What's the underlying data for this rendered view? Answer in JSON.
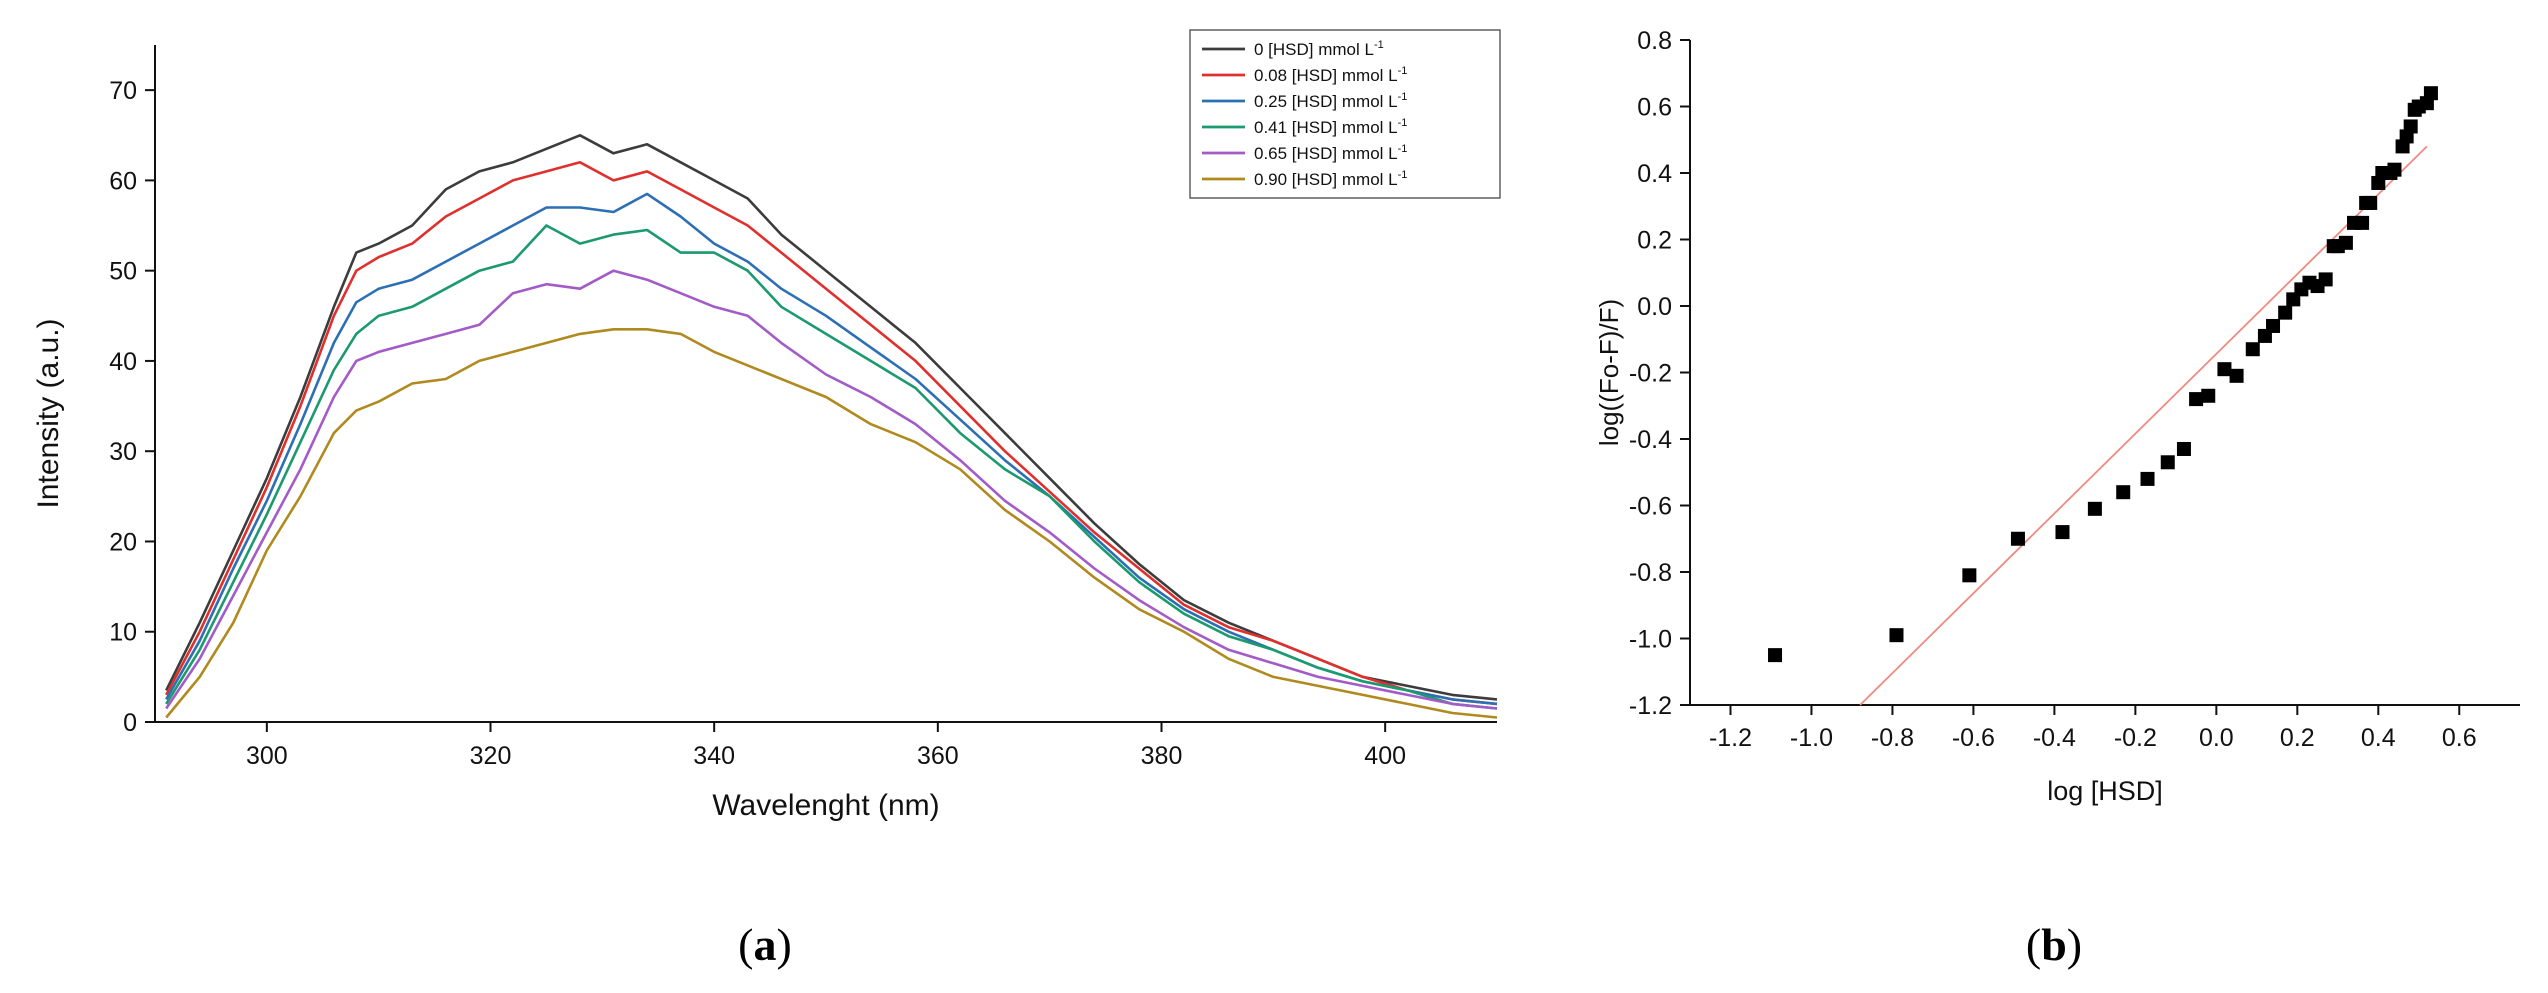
{
  "chart_data": [
    {
      "type": "line",
      "panel": "a",
      "xlabel": "Wavelenght (nm)",
      "ylabel": "Intensity (a.u.)",
      "xlim": [
        290,
        410
      ],
      "ylim": [
        0,
        75
      ],
      "xticks": [
        300,
        320,
        340,
        360,
        380,
        400
      ],
      "yticks": [
        0,
        10,
        20,
        30,
        40,
        50,
        60,
        70
      ],
      "legend_position": "top-right",
      "legend_unit_suffix": "-1",
      "x": [
        291,
        294,
        297,
        300,
        303,
        306,
        308,
        310,
        313,
        316,
        319,
        322,
        325,
        328,
        331,
        334,
        337,
        340,
        343,
        346,
        350,
        354,
        358,
        362,
        366,
        370,
        374,
        378,
        382,
        386,
        390,
        394,
        398,
        402,
        406,
        410
      ],
      "series": [
        {
          "name": "0 [HSD] mmol L",
          "color": "#3c3c3c",
          "values": [
            3.5,
            11,
            19,
            27,
            36,
            46,
            52,
            53,
            55,
            59,
            61,
            62,
            63.5,
            65,
            63,
            64,
            62,
            60,
            58,
            54,
            50,
            46,
            42,
            37,
            32,
            27,
            22,
            17.5,
            13.5,
            11,
            9,
            7,
            5,
            4,
            3,
            2.5
          ]
        },
        {
          "name": "0.08 [HSD] mmol L",
          "color": "#e0302d",
          "values": [
            3,
            10,
            18,
            26,
            35,
            45,
            50,
            51.5,
            53,
            56,
            58,
            60,
            61,
            62,
            60,
            61,
            59,
            57,
            55,
            52,
            48,
            44,
            40,
            35,
            30,
            25.5,
            21,
            17,
            13,
            10.5,
            9,
            7,
            5,
            3.5,
            2.5,
            2
          ]
        },
        {
          "name": "0.25 [HSD] mmol L",
          "color": "#2c6fb5",
          "values": [
            2.5,
            9,
            17,
            24.5,
            33,
            42,
            46.5,
            48,
            49,
            51,
            53,
            55,
            57,
            57,
            56.5,
            58.5,
            56,
            53,
            51,
            48,
            45,
            41.5,
            38,
            33.5,
            29,
            25,
            20.5,
            16,
            12.5,
            10,
            8,
            6,
            4.5,
            3.5,
            2.5,
            2
          ]
        },
        {
          "name": "0.41 [HSD] mmol L",
          "color": "#1b9a6e",
          "values": [
            2,
            8,
            15.5,
            23,
            31,
            39,
            43,
            45,
            46,
            48,
            50,
            51,
            55,
            53,
            54,
            54.5,
            52,
            52,
            50,
            46,
            43,
            40,
            37,
            32,
            28,
            25,
            20,
            15.5,
            12,
            9.5,
            8,
            6,
            4.5,
            3.5,
            2,
            1.5
          ]
        },
        {
          "name": "0.65 [HSD] mmol L",
          "color": "#a35bc7",
          "values": [
            1.5,
            7,
            14,
            21,
            28,
            36,
            40,
            41,
            42,
            43,
            44,
            47.5,
            48.5,
            48,
            50,
            49,
            47.5,
            46,
            45,
            42,
            38.5,
            36,
            33,
            29,
            24.5,
            21,
            17,
            13.5,
            10.5,
            8,
            6.5,
            5,
            4,
            3,
            2,
            1.5
          ]
        },
        {
          "name": "0.90 [HSD] mmol L",
          "color": "#b08a1e",
          "values": [
            0.5,
            5,
            11,
            19,
            25,
            32,
            34.5,
            35.5,
            37.5,
            38,
            40,
            41,
            42,
            43,
            43.5,
            43.5,
            43,
            41,
            39.5,
            38,
            36,
            33,
            31,
            28,
            23.5,
            20,
            16,
            12.5,
            10,
            7,
            5,
            4,
            3,
            2,
            1,
            0.5
          ]
        }
      ]
    },
    {
      "type": "scatter",
      "panel": "b",
      "xlabel": "log [HSD]",
      "ylabel": "log((Fo-F)/F)",
      "xlim": [
        -1.3,
        0.75
      ],
      "ylim": [
        -1.2,
        0.8
      ],
      "xticks": [
        -1.2,
        -1.0,
        -0.8,
        -0.6,
        -0.4,
        -0.2,
        0.0,
        0.2,
        0.4,
        0.6
      ],
      "yticks": [
        -1.2,
        -1.0,
        -0.8,
        -0.6,
        -0.4,
        -0.2,
        0.0,
        0.2,
        0.4,
        0.6,
        0.8
      ],
      "x": [
        -1.09,
        -0.79,
        -0.61,
        -0.49,
        -0.38,
        -0.3,
        -0.23,
        -0.17,
        -0.12,
        -0.08,
        -0.05,
        -0.02,
        0.02,
        0.05,
        0.09,
        0.12,
        0.14,
        0.17,
        0.19,
        0.21,
        0.23,
        0.25,
        0.27,
        0.29,
        0.3,
        0.32,
        0.34,
        0.36,
        0.37,
        0.38,
        0.4,
        0.41,
        0.43,
        0.44,
        0.46,
        0.47,
        0.48,
        0.49,
        0.5,
        0.52,
        0.53
      ],
      "y": [
        -1.05,
        -0.99,
        -0.81,
        -0.7,
        -0.68,
        -0.61,
        -0.56,
        -0.52,
        -0.47,
        -0.43,
        -0.28,
        -0.27,
        -0.19,
        -0.21,
        -0.13,
        -0.09,
        -0.06,
        -0.02,
        0.02,
        0.05,
        0.07,
        0.06,
        0.08,
        0.18,
        0.18,
        0.19,
        0.25,
        0.25,
        0.31,
        0.31,
        0.37,
        0.4,
        0.4,
        0.41,
        0.48,
        0.51,
        0.54,
        0.59,
        0.6,
        0.61,
        0.64
      ],
      "fit_line": {
        "color": "#f08a80",
        "x": [
          -0.88,
          0.52
        ],
        "y": [
          -1.2,
          0.48
        ]
      }
    }
  ],
  "panel_labels": {
    "a": {
      "open": "(",
      "letter": "a",
      "close": ")"
    },
    "b": {
      "open": "(",
      "letter": "b",
      "close": ")"
    }
  }
}
